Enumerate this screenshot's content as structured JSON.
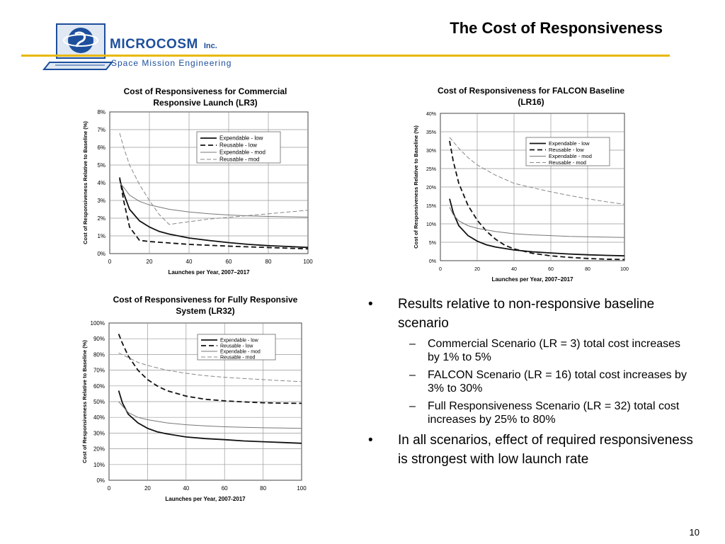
{
  "slide": {
    "title": "The Cost of Responsiveness",
    "page_number": "10",
    "logo": {
      "name": "MICROCOSM",
      "inc": "Inc.",
      "subtitle": "Space Mission Engineering"
    }
  },
  "bullets": [
    {
      "text": "Results relative to non-responsive baseline scenario",
      "sub": [
        "Commercial Scenario (LR = 3) total cost increases by 1% to 5%",
        "FALCON Scenario (LR = 16) total cost increases by 3% to 30%",
        "Full Responsiveness Scenario (LR = 32) total cost increases by 25% to 80%"
      ]
    },
    {
      "text": "In all scenarios, effect of required responsiveness is strongest with low launch rate",
      "sub": []
    }
  ],
  "chart_data": [
    {
      "type": "line",
      "title": "Cost of Responsiveness for Commercial Responsive Launch (LR3)",
      "xlabel": "Launches per Year, 2007–2017",
      "ylabel": "Cost of Responsiveness Relative to Baseline (%)",
      "xlim": [
        0,
        100
      ],
      "ylim": [
        0,
        8
      ],
      "xticks": [
        "0",
        "20",
        "40",
        "60",
        "80",
        "100"
      ],
      "yticks": [
        "0%",
        "1%",
        "2%",
        "3%",
        "4%",
        "5%",
        "6%",
        "7%",
        "8%"
      ],
      "legend_position": "top-right",
      "grid": true,
      "series": [
        {
          "name": "Expendable - low",
          "style": "solid-thick",
          "x": [
            5,
            7,
            10,
            15,
            20,
            25,
            30,
            40,
            50,
            60,
            70,
            80,
            90,
            100
          ],
          "y": [
            4.2,
            3.4,
            2.5,
            1.85,
            1.5,
            1.25,
            1.1,
            0.88,
            0.74,
            0.62,
            0.52,
            0.45,
            0.4,
            0.35
          ]
        },
        {
          "name": "Reusable - low",
          "style": "dashed-thick",
          "x": [
            5,
            7,
            10,
            15,
            20,
            30,
            40,
            60,
            80,
            100
          ],
          "y": [
            4.3,
            3.0,
            1.5,
            0.75,
            0.68,
            0.6,
            0.52,
            0.42,
            0.34,
            0.27
          ]
        },
        {
          "name": "Expendable - mod",
          "style": "solid-thin",
          "x": [
            5,
            7,
            10,
            15,
            20,
            30,
            40,
            50,
            60,
            70,
            80,
            90,
            100
          ],
          "y": [
            4.0,
            3.75,
            3.3,
            2.95,
            2.75,
            2.5,
            2.35,
            2.25,
            2.18,
            2.13,
            2.1,
            2.08,
            2.06
          ]
        },
        {
          "name": "Reusable - mod",
          "style": "dashed-thin",
          "x": [
            5,
            7,
            10,
            15,
            20,
            25,
            30,
            40,
            50,
            60,
            70,
            80,
            90,
            100
          ],
          "y": [
            6.8,
            6.0,
            5.0,
            3.9,
            3.0,
            2.2,
            1.65,
            1.8,
            1.95,
            2.05,
            2.15,
            2.25,
            2.35,
            2.45
          ]
        }
      ]
    },
    {
      "type": "line",
      "title": "Cost of Responsiveness for FALCON Baseline (LR16)",
      "xlabel": "Launches per Year, 2007–2017",
      "ylabel": "Cost of Responsiveness Relative to Baseline (%)",
      "xlim": [
        0,
        100
      ],
      "ylim": [
        0,
        40
      ],
      "xticks": [
        "0",
        "20",
        "40",
        "60",
        "80",
        "100"
      ],
      "yticks": [
        "0%",
        "5%",
        "10%",
        "15%",
        "20%",
        "25%",
        "30%",
        "35%",
        "40%"
      ],
      "legend_position": "top-right",
      "grid": true,
      "series": [
        {
          "name": "Expendable - low",
          "style": "solid-thick",
          "x": [
            5,
            7,
            10,
            15,
            20,
            25,
            30,
            40,
            50,
            60,
            70,
            80,
            90,
            100
          ],
          "y": [
            16.8,
            13.0,
            9.5,
            6.8,
            5.3,
            4.3,
            3.7,
            2.9,
            2.4,
            2.1,
            1.8,
            1.6,
            1.45,
            1.3
          ]
        },
        {
          "name": "Reusable - low",
          "style": "dashed-thick",
          "x": [
            5,
            7,
            10,
            15,
            20,
            25,
            30,
            35,
            40,
            50,
            60,
            70,
            80,
            90,
            100
          ],
          "y": [
            32.5,
            27.0,
            21.0,
            15.0,
            11.0,
            8.0,
            5.8,
            4.2,
            3.2,
            2.0,
            1.3,
            0.9,
            0.6,
            0.4,
            0.3
          ]
        },
        {
          "name": "Expendable - mod",
          "style": "solid-thin",
          "x": [
            5,
            7,
            10,
            15,
            20,
            30,
            40,
            50,
            60,
            70,
            80,
            90,
            100
          ],
          "y": [
            14.5,
            12.5,
            10.8,
            9.5,
            8.8,
            7.9,
            7.3,
            7.0,
            6.8,
            6.6,
            6.5,
            6.4,
            6.3
          ]
        },
        {
          "name": "Reusable - mod",
          "style": "dashed-thin",
          "x": [
            5,
            10,
            15,
            20,
            30,
            40,
            50,
            60,
            70,
            80,
            90,
            100
          ],
          "y": [
            33.5,
            30.5,
            28.0,
            26.0,
            23.2,
            21.0,
            19.8,
            18.7,
            17.7,
            16.8,
            16.0,
            15.3
          ]
        }
      ]
    },
    {
      "type": "line",
      "title": "Cost of Responsiveness for Fully Responsive System (LR32)",
      "xlabel": "Launches per Year, 2007-2017",
      "ylabel": "Cost of Responsiveness Relative to Baseline (%)",
      "xlim": [
        0,
        100
      ],
      "ylim": [
        0,
        100
      ],
      "xticks": [
        "0",
        "20",
        "40",
        "60",
        "80",
        "100"
      ],
      "yticks": [
        "0%",
        "10%",
        "20%",
        "30%",
        "40%",
        "50%",
        "60%",
        "70%",
        "80%",
        "90%",
        "100%"
      ],
      "legend_position": "top-right",
      "grid": true,
      "series": [
        {
          "name": "Expendable - low",
          "style": "solid-thick",
          "x": [
            5,
            7,
            10,
            15,
            20,
            25,
            30,
            40,
            50,
            60,
            70,
            80,
            90,
            100
          ],
          "y": [
            57,
            49,
            42,
            36.5,
            33,
            30.8,
            29.5,
            27.5,
            26.5,
            25.8,
            25.0,
            24.5,
            24.0,
            23.5
          ]
        },
        {
          "name": "Reusable - low",
          "style": "dashed-thick",
          "x": [
            5,
            7,
            10,
            15,
            20,
            25,
            30,
            40,
            50,
            60,
            70,
            80,
            90,
            100
          ],
          "y": [
            93,
            87,
            79,
            70,
            64,
            60,
            57,
            53.5,
            51.5,
            50.5,
            49.8,
            49.3,
            49.0,
            48.9
          ]
        },
        {
          "name": "Expendable - mod",
          "style": "solid-thin",
          "x": [
            5,
            10,
            15,
            20,
            30,
            40,
            50,
            60,
            70,
            80,
            90,
            100
          ],
          "y": [
            50,
            43,
            40,
            38.5,
            36.5,
            35.3,
            34.6,
            34.0,
            33.7,
            33.4,
            33.2,
            33.0
          ]
        },
        {
          "name": "Reusable - mod",
          "style": "dashed-thin",
          "x": [
            5,
            10,
            15,
            20,
            30,
            40,
            50,
            60,
            70,
            80,
            90,
            100
          ],
          "y": [
            81,
            78,
            75,
            73,
            70,
            68,
            66.5,
            65.5,
            64.7,
            64.0,
            63.3,
            62.7
          ]
        }
      ]
    }
  ]
}
